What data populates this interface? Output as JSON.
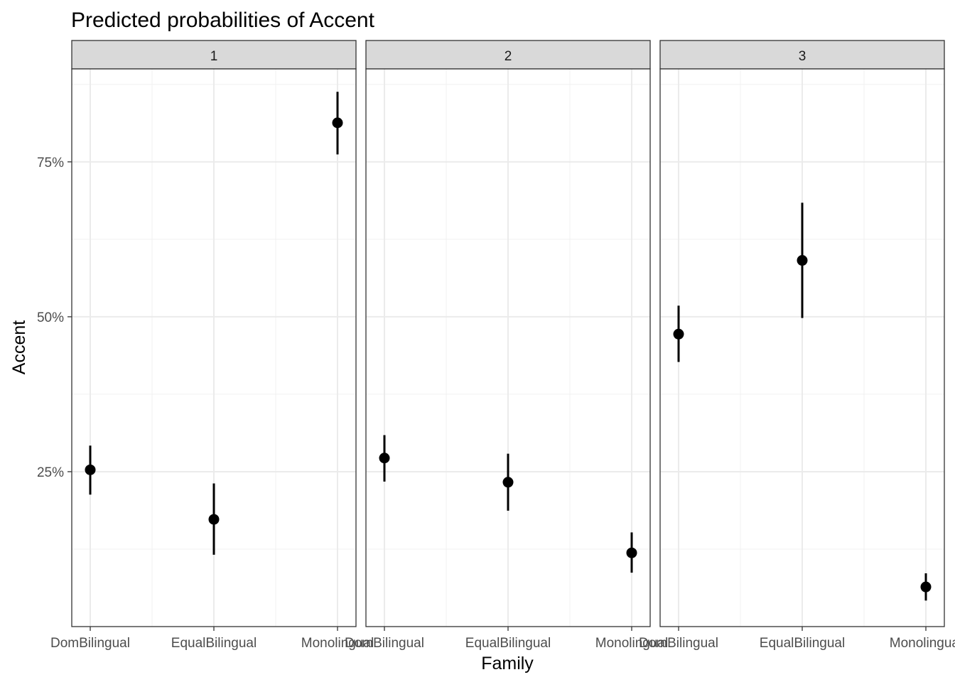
{
  "chart_data": {
    "type": "scatter",
    "title": "Predicted probabilities of Accent",
    "xlabel": "Family",
    "ylabel": "Accent",
    "categories": [
      "DomBilingual",
      "EqualBilingual",
      "Monolingual"
    ],
    "y_ticks": [
      0.25,
      0.5,
      0.75
    ],
    "y_tick_labels": [
      "25%",
      "50%",
      "75%"
    ],
    "ylim": [
      0.0,
      0.9
    ],
    "grid": true,
    "facets": [
      {
        "label": "1",
        "points": [
          {
            "x": "DomBilingual",
            "y": 0.253,
            "lower": 0.213,
            "upper": 0.292
          },
          {
            "x": "EqualBilingual",
            "y": 0.173,
            "lower": 0.116,
            "upper": 0.231
          },
          {
            "x": "Monolingual",
            "y": 0.813,
            "lower": 0.762,
            "upper": 0.863
          }
        ]
      },
      {
        "label": "2",
        "points": [
          {
            "x": "DomBilingual",
            "y": 0.272,
            "lower": 0.234,
            "upper": 0.309
          },
          {
            "x": "EqualBilingual",
            "y": 0.233,
            "lower": 0.187,
            "upper": 0.279
          },
          {
            "x": "Monolingual",
            "y": 0.119,
            "lower": 0.087,
            "upper": 0.152
          }
        ]
      },
      {
        "label": "3",
        "points": [
          {
            "x": "DomBilingual",
            "y": 0.472,
            "lower": 0.427,
            "upper": 0.518
          },
          {
            "x": "EqualBilingual",
            "y": 0.591,
            "lower": 0.498,
            "upper": 0.684
          },
          {
            "x": "Monolingual",
            "y": 0.064,
            "lower": 0.042,
            "upper": 0.086
          }
        ]
      }
    ]
  }
}
